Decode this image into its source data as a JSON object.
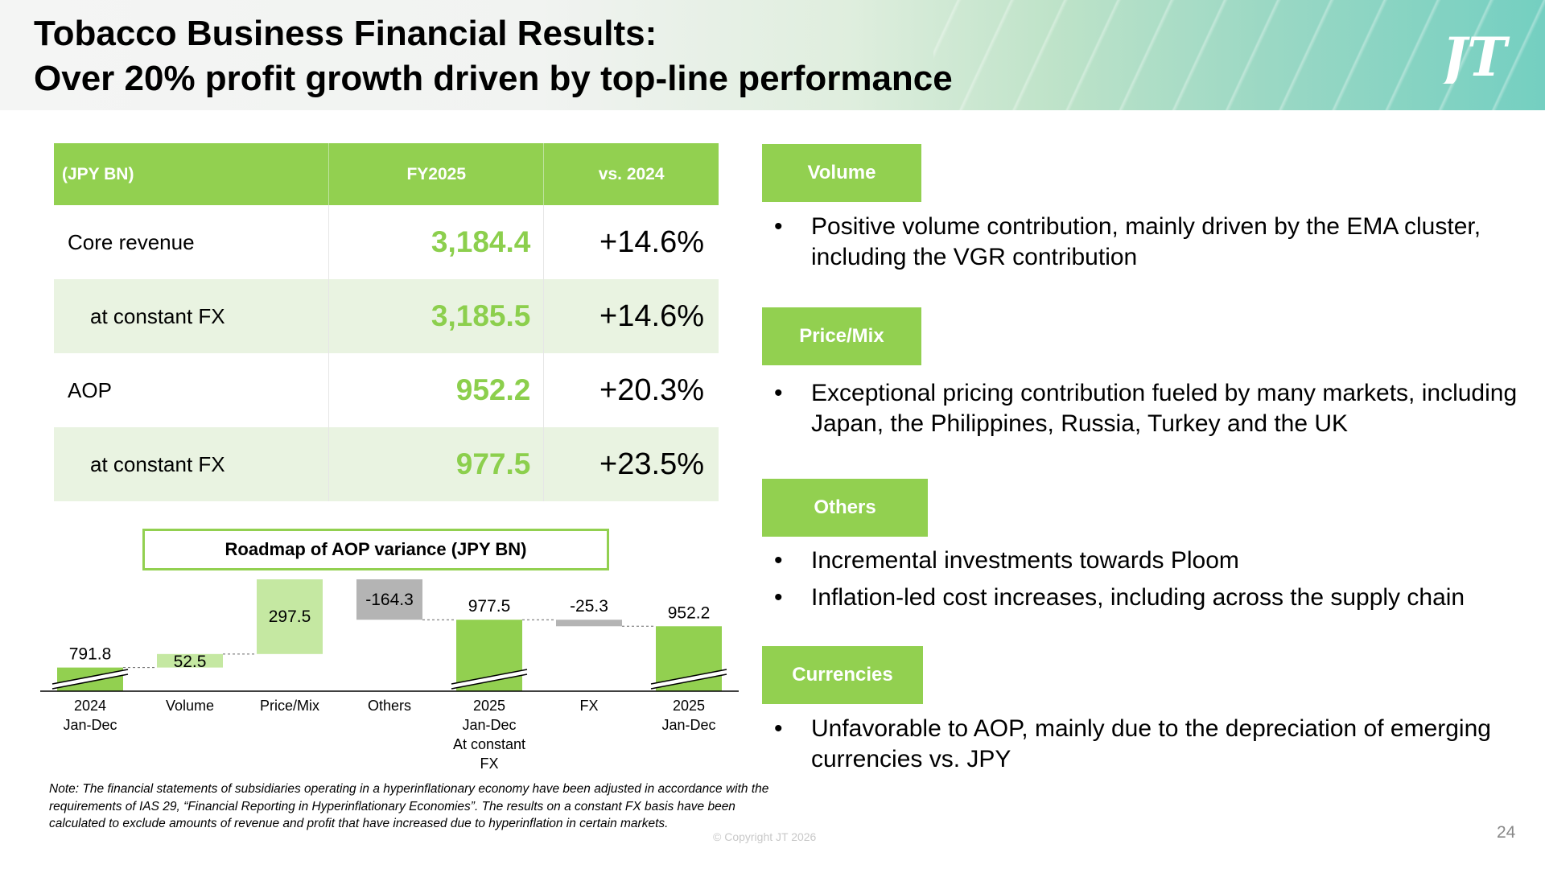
{
  "header": {
    "title_line1": "Tobacco Business Financial Results:",
    "title_line2": "Over 20% profit growth driven by top-line performance",
    "logo_text": "JT"
  },
  "table": {
    "headers": [
      "(JPY BN)",
      "FY2025",
      "vs. 2024"
    ],
    "rows": [
      {
        "label": "Core revenue",
        "value": "3,184.4",
        "change": "+14.6%"
      },
      {
        "label": "at constant FX",
        "value": "3,185.5",
        "change": "+14.6%"
      },
      {
        "label": "AOP",
        "value": "952.2",
        "change": "+20.3%"
      },
      {
        "label": "at constant FX",
        "value": "977.5",
        "change": "+23.5%"
      }
    ]
  },
  "waterfall": {
    "title": "Roadmap of AOP variance (JPY BN)"
  },
  "chart_data": {
    "type": "bar",
    "subtype": "waterfall",
    "title": "Roadmap of AOP variance (JPY BN)",
    "categories": [
      "2024\nJan-Dec",
      "Volume",
      "Price/Mix",
      "Others",
      "2025\nJan-Dec\nAt constant\nFX",
      "FX",
      "2025\nJan-Dec"
    ],
    "values": [
      791.8,
      52.5,
      297.5,
      -164.3,
      977.5,
      -25.3,
      952.2
    ],
    "labels": [
      "791.8",
      "52.5",
      "297.5",
      "-164.3",
      "977.5",
      "-25.3",
      "952.2"
    ],
    "kinds": [
      "total",
      "delta",
      "delta",
      "delta",
      "total",
      "delta",
      "total"
    ],
    "colors": {
      "total": "#92d050",
      "positive": "#c5e8a2",
      "negative": "#b4b4b4"
    },
    "axis_break": true,
    "grid": false
  },
  "note": "Note: The financial statements of subsidiaries operating in a hyperinflationary economy have been adjusted in accordance with the requirements of IAS 29, “Financial Reporting in Hyperinflationary Economies”. The results on a constant FX basis have been calculated to exclude amounts of revenue and profit that have increased due to hyperinflation in certain markets.",
  "copyright": "© Copyright JT 2026",
  "page_number": "24",
  "sections": [
    {
      "tag": "Volume",
      "bullets": [
        "Positive volume contribution, mainly driven by the EMA cluster, including the VGR contribution"
      ]
    },
    {
      "tag": "Price/Mix",
      "bullets": [
        "Exceptional pricing contribution fueled by many markets, including Japan, the Philippines, Russia, Turkey and the UK"
      ]
    },
    {
      "tag": "Others",
      "bullets": [
        "Incremental investments towards Ploom",
        "Inflation-led cost increases, including across the supply chain"
      ]
    },
    {
      "tag": "Currencies",
      "bullets": [
        "Unfavorable to AOP, mainly due to the depreciation of emerging currencies vs. JPY"
      ]
    }
  ],
  "bullet_char": "•",
  "colors": {
    "accent_green": "#92d050",
    "value_green": "#8ccf4d",
    "row_shade": "#e9f3e1"
  }
}
